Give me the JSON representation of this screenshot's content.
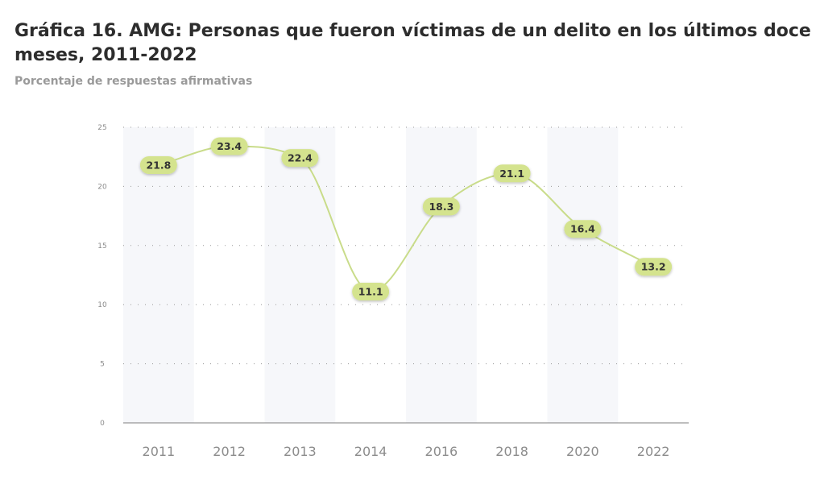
{
  "chart_data": {
    "type": "line",
    "title": "Gráfica 16. AMG: Personas que fueron víctimas de un delito en los últimos doce meses, 2011-2022",
    "subtitle": "Porcentaje de respuestas afirmativas",
    "categories": [
      "2011",
      "2012",
      "2013",
      "2014",
      "2016",
      "2018",
      "2020",
      "2022"
    ],
    "series": [
      {
        "values": [
          21.8,
          23.4,
          22.4,
          11.1,
          18.3,
          21.1,
          16.4,
          13.2
        ]
      }
    ],
    "ylim": [
      0,
      25
    ],
    "yticks": [
      "0",
      "5",
      "10",
      "15",
      "20",
      "25"
    ],
    "grid": true,
    "legend": "none",
    "colors": {
      "line": "#c9dc8a",
      "label_bg": "#d4e38e",
      "band": "#f6f7fa",
      "grid": "#9a9a9a",
      "axis": "#7d7d7d"
    }
  }
}
